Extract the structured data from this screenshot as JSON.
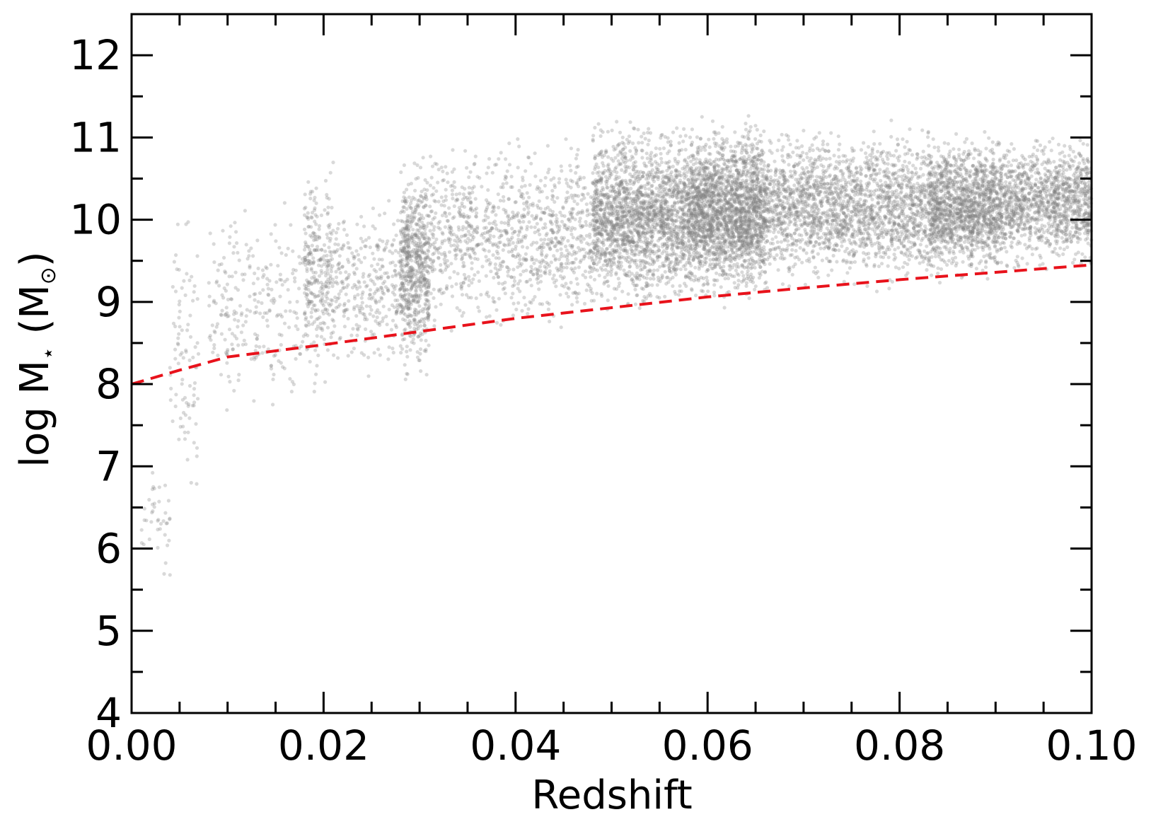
{
  "chart_data": {
    "type": "scatter",
    "xlabel": "Redshift",
    "ylabel": {
      "prefix": "log M",
      "sub": "⋆",
      "unit_open": " (M",
      "unit_sub": "⊙",
      "unit_close": ")"
    },
    "xlim": [
      0.0,
      0.1
    ],
    "ylim": [
      4,
      12.5
    ],
    "x_ticks": [
      0.0,
      0.02,
      0.04,
      0.06,
      0.08,
      0.1
    ],
    "x_tick_labels": [
      "0.00",
      "0.02",
      "0.04",
      "0.06",
      "0.08",
      "0.10"
    ],
    "y_ticks": [
      4,
      5,
      6,
      7,
      8,
      9,
      10,
      11,
      12
    ],
    "y_tick_labels": [
      "4",
      "5",
      "6",
      "7",
      "8",
      "9",
      "10",
      "11",
      "12"
    ],
    "scatter_color": "#808080",
    "point_clusters": [
      {
        "z_range": [
          0.001,
          0.004
        ],
        "logm_range": [
          5.1,
          7.5
        ],
        "count": 40
      },
      {
        "z_range": [
          0.004,
          0.007
        ],
        "logm_range": [
          6.1,
          10.7
        ],
        "count": 90
      },
      {
        "z_range": [
          0.008,
          0.018
        ],
        "logm_range": [
          7.3,
          10.5
        ],
        "count": 250
      },
      {
        "z_range": [
          0.018,
          0.021
        ],
        "logm_range": [
          7.7,
          11.0
        ],
        "count": 300
      },
      {
        "z_range": [
          0.021,
          0.028
        ],
        "logm_range": [
          7.9,
          10.5
        ],
        "count": 300
      },
      {
        "z_range": [
          0.028,
          0.031
        ],
        "logm_range": [
          7.8,
          11.0
        ],
        "count": 650
      },
      {
        "z_range": [
          0.031,
          0.048
        ],
        "logm_range": [
          8.4,
          11.2
        ],
        "count": 1000
      },
      {
        "z_range": [
          0.048,
          0.058
        ],
        "logm_range": [
          8.7,
          11.4
        ],
        "count": 1900
      },
      {
        "z_range": [
          0.058,
          0.066
        ],
        "logm_range": [
          8.8,
          11.4
        ],
        "count": 2200
      },
      {
        "z_range": [
          0.066,
          0.083
        ],
        "logm_range": [
          9.0,
          11.3
        ],
        "count": 2000
      },
      {
        "z_range": [
          0.083,
          0.09
        ],
        "logm_range": [
          9.1,
          11.2
        ],
        "count": 1400
      },
      {
        "z_range": [
          0.09,
          0.1
        ],
        "logm_range": [
          9.2,
          11.2
        ],
        "count": 1300
      }
    ],
    "limit_line": {
      "color": "#e8121b",
      "style": "dashed",
      "points": [
        [
          0.0,
          8.0
        ],
        [
          0.005,
          8.17
        ],
        [
          0.01,
          8.33
        ],
        [
          0.02,
          8.48
        ],
        [
          0.03,
          8.64
        ],
        [
          0.04,
          8.8
        ],
        [
          0.05,
          8.93
        ],
        [
          0.06,
          9.06
        ],
        [
          0.07,
          9.17
        ],
        [
          0.08,
          9.27
        ],
        [
          0.09,
          9.36
        ],
        [
          0.1,
          9.45
        ]
      ]
    },
    "grid": false,
    "legend": "none"
  }
}
